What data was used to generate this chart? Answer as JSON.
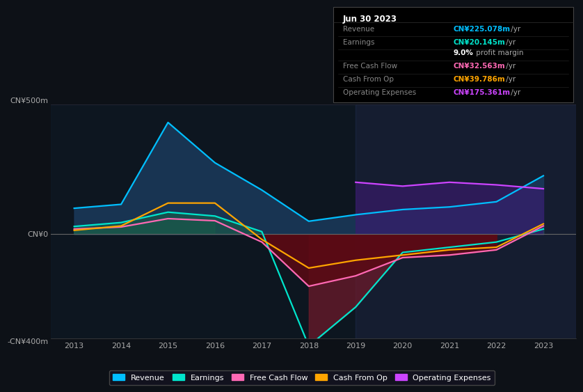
{
  "background_color": "#0d1117",
  "plot_bg": "#0d1117",
  "title": "Jun 30 2023",
  "ylabel_top": "CN¥500m",
  "ylabel_zero": "CN¥0",
  "ylabel_bottom": "-CN¥400m",
  "ylim": [
    -400,
    500
  ],
  "years": [
    2013,
    2014,
    2015,
    2016,
    2017,
    2018,
    2019,
    2020,
    2021,
    2022,
    2023
  ],
  "revenue": [
    100,
    115,
    430,
    275,
    170,
    50,
    75,
    95,
    105,
    125,
    225
  ],
  "earnings": [
    30,
    45,
    85,
    70,
    10,
    -430,
    -280,
    -70,
    -50,
    -30,
    20
  ],
  "free_cf": [
    20,
    28,
    60,
    52,
    -30,
    -200,
    -160,
    -90,
    -80,
    -60,
    32
  ],
  "cash_from_op": [
    15,
    32,
    120,
    120,
    -20,
    -130,
    -100,
    -80,
    -60,
    -50,
    40
  ],
  "op_expenses": [
    null,
    null,
    null,
    null,
    null,
    null,
    200,
    185,
    200,
    190,
    175
  ],
  "revenue_color": "#00bfff",
  "earnings_color": "#00e5cc",
  "free_cf_color": "#ff69b4",
  "cash_from_op_color": "#ffa500",
  "op_expenses_color": "#cc44ff",
  "revenue_fill": "#1a3a5c",
  "earnings_fill_pos": "#1a5c4a",
  "earnings_fill_neg": "#6b1a2a",
  "free_cf_fill_neg": "#5a0a14",
  "free_cf_fill_pos": "#1a5c4a",
  "cash_op_fill_neg": "#5a0a14",
  "op_expenses_fill": "#3a1a6e",
  "shade_left_color": "#0d1e2e",
  "shade_right_color": "#1e2a4a",
  "legend_labels": [
    "Revenue",
    "Earnings",
    "Free Cash Flow",
    "Cash From Op",
    "Operating Expenses"
  ],
  "legend_colors": [
    "#00bfff",
    "#00e5cc",
    "#ff69b4",
    "#ffa500",
    "#cc44ff"
  ],
  "info_rows": [
    {
      "label": "Revenue",
      "value": "CN¥225.078m",
      "suffix": " /yr",
      "value_color": "#00bfff"
    },
    {
      "label": "Earnings",
      "value": "CN¥20.145m",
      "suffix": " /yr",
      "value_color": "#00e5cc"
    },
    {
      "label": "",
      "value": "9.0%",
      "suffix": " profit margin",
      "value_color": "#ffffff"
    },
    {
      "label": "Free Cash Flow",
      "value": "CN¥32.563m",
      "suffix": " /yr",
      "value_color": "#ff69b4"
    },
    {
      "label": "Cash From Op",
      "value": "CN¥39.786m",
      "suffix": " /yr",
      "value_color": "#ffa500"
    },
    {
      "label": "Operating Expenses",
      "value": "CN¥175.361m",
      "suffix": " /yr",
      "value_color": "#cc44ff"
    }
  ]
}
